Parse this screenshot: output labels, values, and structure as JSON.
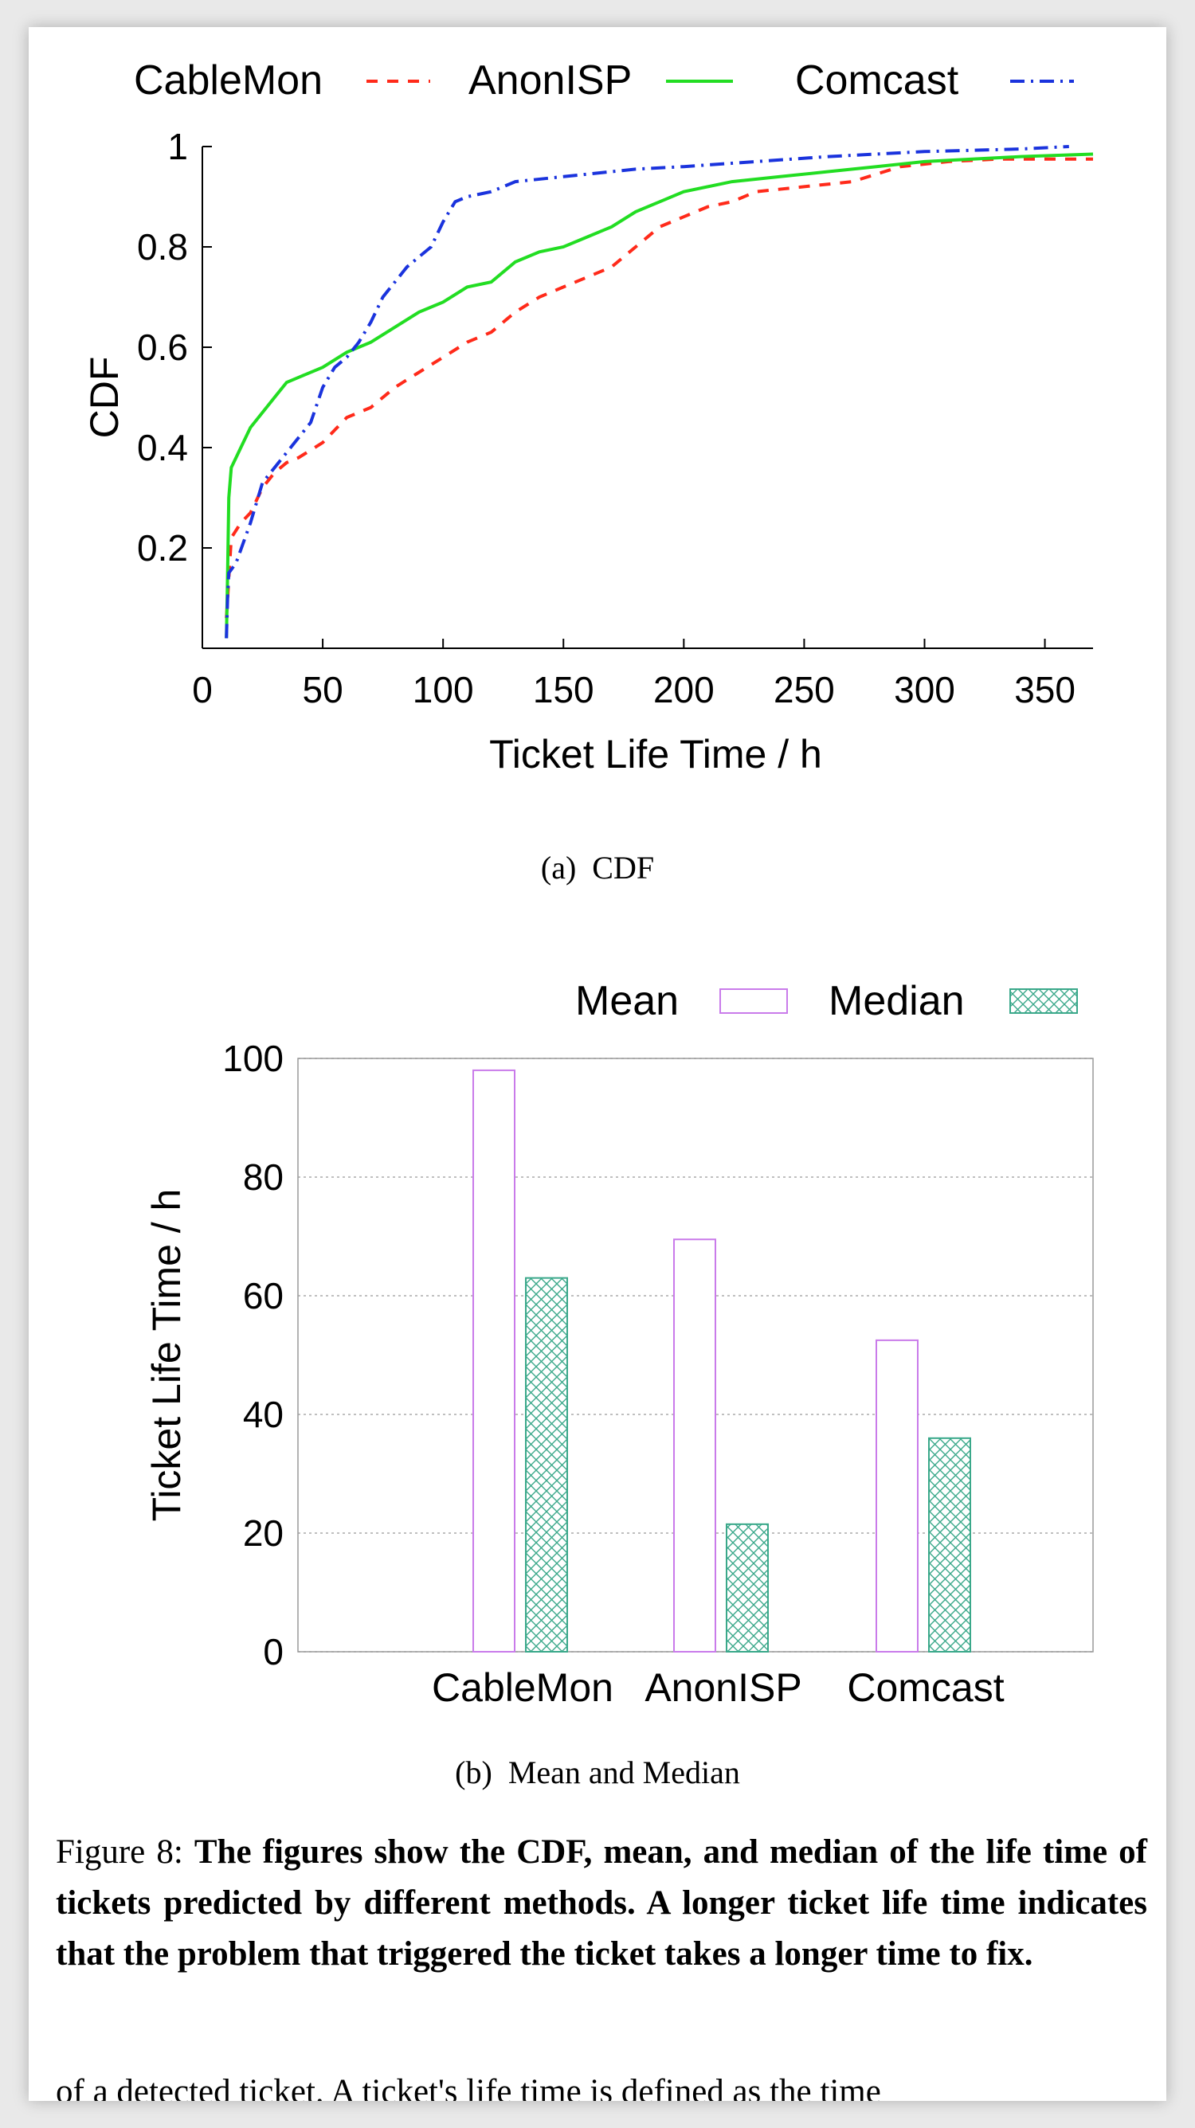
{
  "chart_data": [
    {
      "type": "line",
      "title": "",
      "xlabel": "Ticket Life Time / h",
      "ylabel": "CDF",
      "xlim": [
        0,
        370
      ],
      "ylim": [
        0,
        1
      ],
      "xticks": [
        "0",
        "50",
        "100",
        "150",
        "200",
        "250",
        "300",
        "350"
      ],
      "yticks": [
        "0.2",
        "0.4",
        "0.6",
        "0.8",
        "1"
      ],
      "legend": "top",
      "grid": false,
      "series": [
        {
          "name": "CableMon",
          "color": "#ff2a1a",
          "style": "dashed",
          "x": [
            10,
            12,
            16,
            20,
            25,
            30,
            35,
            40,
            50,
            60,
            70,
            80,
            90,
            100,
            110,
            120,
            130,
            140,
            150,
            160,
            170,
            180,
            190,
            200,
            210,
            220,
            230,
            250,
            270,
            290,
            310,
            330,
            350,
            370
          ],
          "y": [
            0.06,
            0.22,
            0.25,
            0.27,
            0.32,
            0.35,
            0.37,
            0.38,
            0.41,
            0.46,
            0.48,
            0.52,
            0.55,
            0.58,
            0.61,
            0.63,
            0.67,
            0.7,
            0.72,
            0.74,
            0.76,
            0.8,
            0.84,
            0.86,
            0.88,
            0.89,
            0.91,
            0.92,
            0.93,
            0.96,
            0.97,
            0.975,
            0.975,
            0.975
          ]
        },
        {
          "name": "AnonISP",
          "color": "#22dd22",
          "style": "solid",
          "x": [
            10,
            10.5,
            11,
            12,
            14,
            16,
            20,
            25,
            30,
            35,
            40,
            50,
            60,
            70,
            80,
            90,
            100,
            110,
            120,
            130,
            140,
            150,
            160,
            170,
            180,
            190,
            200,
            220,
            240,
            260,
            280,
            300,
            320,
            340,
            370
          ],
          "y": [
            0.02,
            0.15,
            0.3,
            0.36,
            0.38,
            0.4,
            0.44,
            0.47,
            0.5,
            0.53,
            0.54,
            0.56,
            0.59,
            0.61,
            0.64,
            0.67,
            0.69,
            0.72,
            0.73,
            0.77,
            0.79,
            0.8,
            0.82,
            0.84,
            0.87,
            0.89,
            0.91,
            0.93,
            0.94,
            0.95,
            0.96,
            0.97,
            0.975,
            0.98,
            0.985
          ]
        },
        {
          "name": "Comcast",
          "color": "#1a33dd",
          "style": "dashdot",
          "x": [
            10,
            10.5,
            11,
            14,
            20,
            25,
            30,
            35,
            40,
            45,
            50,
            55,
            60,
            65,
            70,
            75,
            80,
            85,
            90,
            95,
            100,
            105,
            110,
            120,
            130,
            150,
            180,
            200,
            230,
            260,
            300,
            340,
            360
          ],
          "y": [
            0.02,
            0.1,
            0.15,
            0.17,
            0.25,
            0.33,
            0.36,
            0.39,
            0.42,
            0.45,
            0.52,
            0.56,
            0.58,
            0.61,
            0.65,
            0.7,
            0.73,
            0.76,
            0.78,
            0.8,
            0.85,
            0.89,
            0.9,
            0.91,
            0.93,
            0.94,
            0.955,
            0.96,
            0.97,
            0.98,
            0.99,
            0.995,
            1.0
          ]
        }
      ]
    },
    {
      "type": "bar",
      "title": "",
      "xlabel": "",
      "ylabel": "Ticket Life Time / h",
      "ylim": [
        0,
        100
      ],
      "yticks": [
        "0",
        "20",
        "40",
        "60",
        "80",
        "100"
      ],
      "categories": [
        "CableMon",
        "AnonISP",
        "Comcast"
      ],
      "grid": true,
      "legend": "top-right",
      "series": [
        {
          "name": "Mean",
          "color": "#c97bea",
          "pattern": "none",
          "values": [
            98,
            69.5,
            52.5
          ]
        },
        {
          "name": "Median",
          "color": "#3aa88a",
          "pattern": "crosshatch",
          "values": [
            63,
            21.5,
            36
          ]
        }
      ]
    }
  ],
  "captions": {
    "sub_a_label": "(a)",
    "sub_a_text": "CDF",
    "sub_b_label": "(b)",
    "sub_b_text": "Mean and Median",
    "figure_label": "Figure 8:",
    "figure_text": "The figures show the CDF, mean, and median of the life time of tickets predicted by different methods. A longer ticket life time indicates that the problem that triggered the ticket takes a longer time to fix.",
    "partial_next_line": "of a detected ticket. A ticket's life time is defined as the time"
  }
}
